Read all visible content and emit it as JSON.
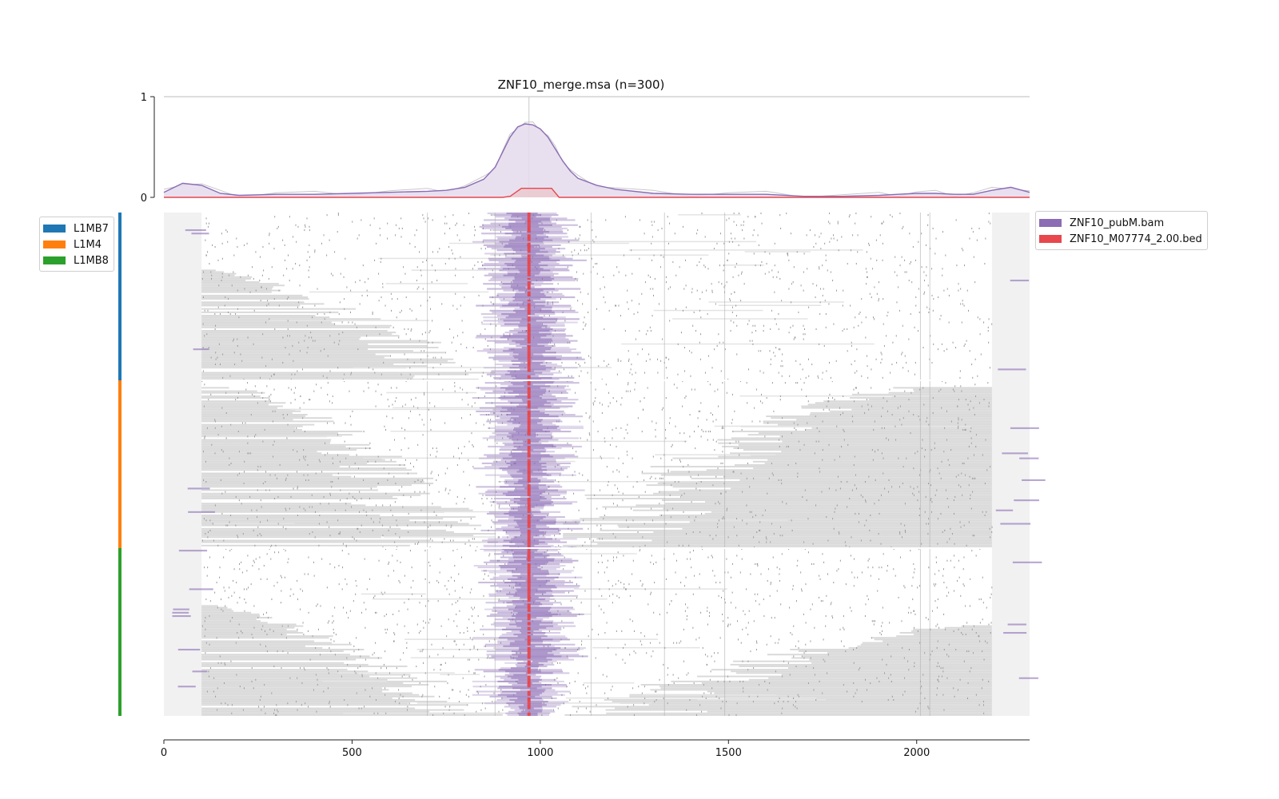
{
  "chart_data": {
    "type": "heatmap",
    "title": "ZNF10_merge.msa (n=300)",
    "xlabel": "",
    "ylabel": "",
    "x_range": [
      0,
      2300
    ],
    "x_ticks": [
      0,
      500,
      1000,
      1500,
      2000
    ],
    "profile": {
      "ylim": [
        0,
        1
      ],
      "y_ticks": [
        0,
        1
      ],
      "series": [
        {
          "name": "ZNF10_pubM.bam",
          "color": "#8b6cb5",
          "fill": "#e4dbec",
          "x": [
            0,
            50,
            100,
            150,
            200,
            300,
            400,
            500,
            600,
            700,
            750,
            800,
            850,
            880,
            900,
            920,
            940,
            960,
            980,
            1000,
            1020,
            1040,
            1060,
            1080,
            1100,
            1150,
            1200,
            1300,
            1400,
            1500,
            1600,
            1700,
            1800,
            1900,
            1950,
            2000,
            2050,
            2100,
            2150,
            2200,
            2250,
            2300
          ],
          "y": [
            0.05,
            0.14,
            0.12,
            0.04,
            0.02,
            0.03,
            0.03,
            0.04,
            0.05,
            0.06,
            0.07,
            0.1,
            0.18,
            0.3,
            0.45,
            0.6,
            0.7,
            0.73,
            0.72,
            0.68,
            0.6,
            0.48,
            0.36,
            0.26,
            0.19,
            0.12,
            0.08,
            0.04,
            0.03,
            0.03,
            0.03,
            0.01,
            0.01,
            0.02,
            0.03,
            0.04,
            0.04,
            0.03,
            0.03,
            0.07,
            0.1,
            0.05
          ]
        },
        {
          "name": "ZNF10_M07774_2.00.bed",
          "color": "#e8474d",
          "fill": "#eac9cf",
          "x": [
            0,
            900,
            920,
            950,
            1000,
            1030,
            1050,
            2300
          ],
          "y": [
            0.0,
            0.0,
            0.01,
            0.09,
            0.09,
            0.09,
            0.0,
            0.0
          ]
        }
      ]
    },
    "groups": [
      {
        "name": "L1MB7",
        "color": "#1f77b4",
        "rows": 100
      },
      {
        "name": "L1M4",
        "color": "#ff7f0e",
        "rows": 100
      },
      {
        "name": "L1MB8",
        "color": "#2ca02c",
        "rows": 100
      }
    ],
    "legend_right": [
      {
        "label": "ZNF10_pubM.bam",
        "color": "#8b6cb5"
      },
      {
        "label": "ZNF10_M07774_2.00.bed",
        "color": "#e8474d"
      }
    ],
    "heatmap": {
      "rows": 300,
      "gap_color": "#d9d9d9",
      "flank_color": "#f1f1f1",
      "signal_color": "#8b6cb5",
      "motif_color": "#e8474d",
      "motif_x": 970,
      "peak_center_x": 970,
      "left_flank_end": 100,
      "right_flank_start": 2200
    },
    "grid": false,
    "legend_placement": "top-left and top-right outside"
  }
}
